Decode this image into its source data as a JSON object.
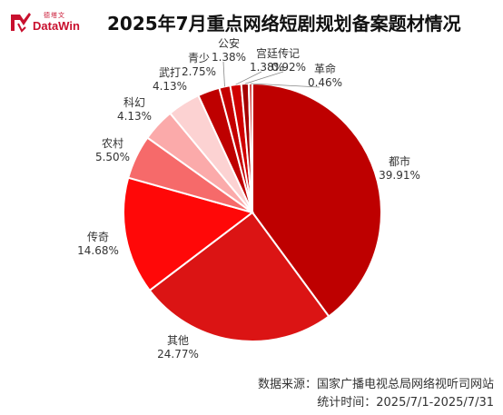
{
  "header": {
    "logo_cn": "德塔文",
    "logo_en": "DataWin",
    "title": "2025年7月重点网络短剧规划备案题材情况"
  },
  "chart_data": {
    "type": "pie",
    "title": "2025年7月重点网络短剧规划备案题材情况",
    "slices": [
      {
        "label": "都市",
        "value": 39.91,
        "display": "39.91%",
        "color": "#be0000"
      },
      {
        "label": "其他",
        "value": 24.77,
        "display": "24.77%",
        "color": "#db1414"
      },
      {
        "label": "传奇",
        "value": 14.68,
        "display": "14.68%",
        "color": "#ff0808"
      },
      {
        "label": "农村",
        "value": 5.5,
        "display": "5.50%",
        "color": "#f66a6a"
      },
      {
        "label": "科幻",
        "value": 4.13,
        "display": "4.13%",
        "color": "#fbaaaa"
      },
      {
        "label": "武打",
        "value": 4.13,
        "display": "4.13%",
        "color": "#fcd2d2"
      },
      {
        "label": "青少",
        "value": 2.75,
        "display": "2.75%",
        "color": "#be0000"
      },
      {
        "label": "公安",
        "value": 1.38,
        "display": "1.38%",
        "color": "#c40000"
      },
      {
        "label": "宫廷",
        "value": 1.38,
        "display": "1.38%",
        "color": "#d00000"
      },
      {
        "label": "传记",
        "value": 0.92,
        "display": "0.92%",
        "color": "#a50000"
      },
      {
        "label": "革命",
        "value": 0.46,
        "display": "0.46%",
        "color": "#d85050"
      }
    ]
  },
  "footer": {
    "source": "数据来源：国家广播电视总局网络视听司网站",
    "period": "统计时间：2025/7/1-2025/7/31"
  }
}
